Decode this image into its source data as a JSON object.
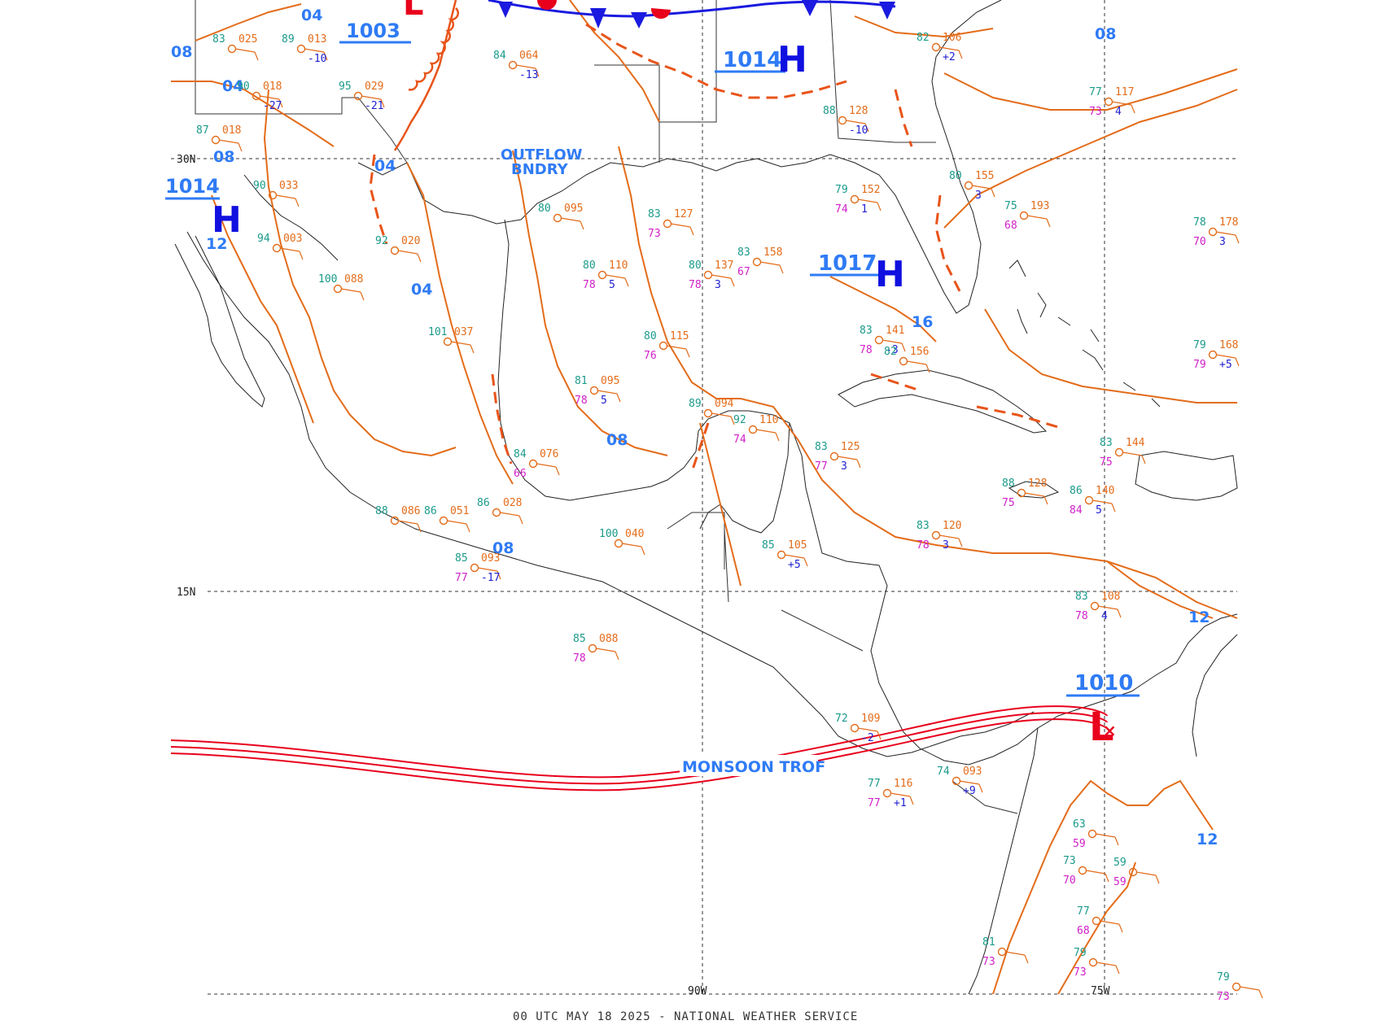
{
  "footer": "00 UTC MAY 18 2025 - NATIONAL WEATHER SERVICE",
  "grid": {
    "lat_labels": [
      "30N",
      "15N"
    ],
    "lon_labels": [
      "90W",
      "75W"
    ]
  },
  "pressure_centers": [
    {
      "kind": "H",
      "value": "1014",
      "color": "#1010e0"
    },
    {
      "kind": "H",
      "value": "1017",
      "color": "#1010e0"
    },
    {
      "kind": "H",
      "value": "1014",
      "color": "#1010e0"
    },
    {
      "kind": "L",
      "value": "1010",
      "color": "#e8001c"
    },
    {
      "kind": "L",
      "value": "1003",
      "color": "#e8001c"
    }
  ],
  "isobar_labels": [
    "04",
    "08",
    "04",
    "04",
    "12",
    "04",
    "08",
    "08",
    "08",
    "16",
    "12",
    "12",
    "08"
  ],
  "features": {
    "outflow": [
      "OUTFLOW",
      "BNDRY"
    ],
    "monsoon": "MONSOON TROF"
  },
  "stations": [
    {
      "t": "83",
      "p": "025",
      "d": "",
      "x": ""
    },
    {
      "t": "89",
      "p": "013",
      "d": "",
      "x": "-10"
    },
    {
      "t": "95",
      "p": "029",
      "d": "",
      "x": "-21"
    },
    {
      "t": "90",
      "p": "018",
      "d": "",
      "x": "-27"
    },
    {
      "t": "87",
      "p": "018",
      "d": "",
      "x": ""
    },
    {
      "t": "90",
      "p": "033",
      "d": "",
      "x": ""
    },
    {
      "t": "94",
      "p": "003",
      "d": "",
      "x": ""
    },
    {
      "t": "100",
      "p": "088",
      "d": "",
      "x": ""
    },
    {
      "t": "92",
      "p": "020",
      "d": "",
      "x": ""
    },
    {
      "t": "84",
      "p": "064",
      "d": "",
      "x": "-13"
    },
    {
      "t": "80",
      "p": "095",
      "d": "",
      "x": ""
    },
    {
      "t": "80",
      "p": "110",
      "d": "78",
      "x": "5"
    },
    {
      "t": "83",
      "p": "127",
      "d": "73",
      "x": ""
    },
    {
      "t": "80",
      "p": "137",
      "d": "78",
      "x": "3"
    },
    {
      "t": "83",
      "p": "158",
      "d": "67",
      "x": ""
    },
    {
      "t": "80",
      "p": "115",
      "d": "76",
      "x": ""
    },
    {
      "t": "81",
      "p": "095",
      "d": "78",
      "x": "5"
    },
    {
      "t": "83",
      "p": "141",
      "d": "78",
      "x": "-3"
    },
    {
      "t": "82",
      "p": "156",
      "d": "",
      "x": ""
    },
    {
      "t": "79",
      "p": "152",
      "d": "74",
      "x": "1"
    },
    {
      "t": "80",
      "p": "155",
      "d": "",
      "x": "3"
    },
    {
      "t": "75",
      "p": "193",
      "d": "68",
      "x": ""
    },
    {
      "t": "78",
      "p": "178",
      "d": "70",
      "x": "3"
    },
    {
      "t": "79",
      "p": "168",
      "d": "79",
      "x": "+5"
    },
    {
      "t": "83",
      "p": "125",
      "d": "77",
      "x": "3"
    },
    {
      "t": "83",
      "p": "144",
      "d": "75",
      "x": ""
    },
    {
      "t": "88",
      "p": "128",
      "d": "75",
      "x": ""
    },
    {
      "t": "86",
      "p": "140",
      "d": "84",
      "x": "5"
    },
    {
      "t": "83",
      "p": "120",
      "d": "78",
      "x": "3"
    },
    {
      "t": "84",
      "p": "076",
      "d": "66",
      "x": ""
    },
    {
      "t": "86",
      "p": "028",
      "d": "",
      "x": ""
    },
    {
      "t": "100",
      "p": "040",
      "d": "",
      "x": ""
    },
    {
      "t": "85",
      "p": "105",
      "d": "",
      "x": "+5"
    },
    {
      "t": "83",
      "p": "108",
      "d": "78",
      "x": "4"
    },
    {
      "t": "85",
      "p": "088",
      "d": "78",
      "x": ""
    },
    {
      "t": "72",
      "p": "109",
      "d": "",
      "x": "-2"
    },
    {
      "t": "77",
      "p": "116",
      "d": "77",
      "x": "+1"
    },
    {
      "t": "74",
      "p": "093",
      "d": "",
      "x": "+9"
    },
    {
      "t": "77",
      "p": "117",
      "d": "73",
      "x": "4"
    },
    {
      "t": "89",
      "p": "094",
      "d": "",
      "x": ""
    },
    {
      "t": "92",
      "p": "110",
      "d": "74",
      "x": ""
    },
    {
      "t": "86",
      "p": "051",
      "d": "",
      "x": ""
    },
    {
      "t": "85",
      "p": "093",
      "d": "77",
      "x": "-17"
    },
    {
      "t": "101",
      "p": "037",
      "d": "",
      "x": ""
    },
    {
      "t": "88",
      "p": "086",
      "d": "",
      "x": ""
    },
    {
      "t": "88",
      "p": "128",
      "d": "",
      "x": "-10"
    },
    {
      "t": "82",
      "p": "106",
      "d": "",
      "x": "+2"
    },
    {
      "t": "63",
      "p": "",
      "d": "59",
      "x": ""
    },
    {
      "t": "73",
      "p": "",
      "d": "70",
      "x": ""
    },
    {
      "t": "59",
      "p": "",
      "d": "59",
      "x": ""
    },
    {
      "t": "77",
      "p": "",
      "d": "68",
      "x": ""
    },
    {
      "t": "79",
      "p": "",
      "d": "73",
      "x": ""
    },
    {
      "t": "81",
      "p": "",
      "d": "73",
      "x": ""
    },
    {
      "t": "79",
      "p": "",
      "d": "73",
      "x": ""
    }
  ]
}
